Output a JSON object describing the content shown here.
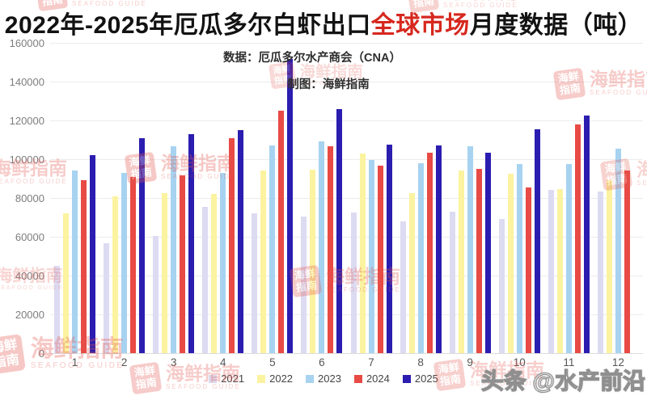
{
  "title": {
    "part1": "2022年-2025年厄瓜多尔白虾出口",
    "highlight": "全球市场",
    "part2": "月度数据（吨）"
  },
  "subtitle": {
    "data_source": "数据：厄瓜多尔水产商会（CNA）",
    "credit": "制图：海鲜指南"
  },
  "watermarks": {
    "corner": "头条 @水产前沿",
    "stamp_name": "海鲜指南",
    "stamp_logo": "海鲜 指南",
    "stamp_caption": "SEAFOOD GUIDE"
  },
  "colors": {
    "title_highlight": "#d6281e",
    "grid": "#ececec",
    "axis_label": "#7d7d7d",
    "legend_label": "#444444",
    "stamp": "#e4574f"
  },
  "chart_data": {
    "type": "bar",
    "title": "2022年-2025年厄瓜多尔白虾出口全球市场月度数据（吨）",
    "xlabel": "",
    "ylabel": "",
    "categories": [
      "1",
      "2",
      "3",
      "4",
      "5",
      "6",
      "7",
      "8",
      "9",
      "10",
      "11",
      "12"
    ],
    "series": [
      {
        "name": "2021",
        "color": "#dcdbf2",
        "values": [
          45000,
          56500,
          60500,
          75500,
          72000,
          70500,
          72500,
          68000,
          73000,
          69000,
          84000,
          83500
        ]
      },
      {
        "name": "2022",
        "color": "#fbf3a0",
        "values": [
          72000,
          81000,
          82500,
          82000,
          94000,
          94500,
          103000,
          82500,
          94000,
          92500,
          84500,
          89000
        ]
      },
      {
        "name": "2023",
        "color": "#a7d3f1",
        "values": [
          94000,
          93000,
          106500,
          93000,
          107000,
          109000,
          99500,
          98000,
          106500,
          97500,
          97500,
          105500
        ]
      },
      {
        "name": "2024",
        "color": "#e84a45",
        "values": [
          89000,
          91000,
          91500,
          111000,
          125000,
          106500,
          96500,
          103500,
          95000,
          85500,
          118000,
          94000
        ]
      },
      {
        "name": "2025",
        "color": "#2b1db0",
        "values": [
          102000,
          111000,
          113000,
          115000,
          151500,
          126000,
          107500,
          107000,
          103500,
          115500,
          122500,
          null
        ]
      }
    ],
    "ylim": [
      0,
      160000
    ],
    "ytick_step": 20000,
    "yticks": [
      0,
      20000,
      40000,
      60000,
      80000,
      100000,
      120000,
      140000,
      160000
    ],
    "grid": "horizontal",
    "legend_position": "bottom"
  }
}
